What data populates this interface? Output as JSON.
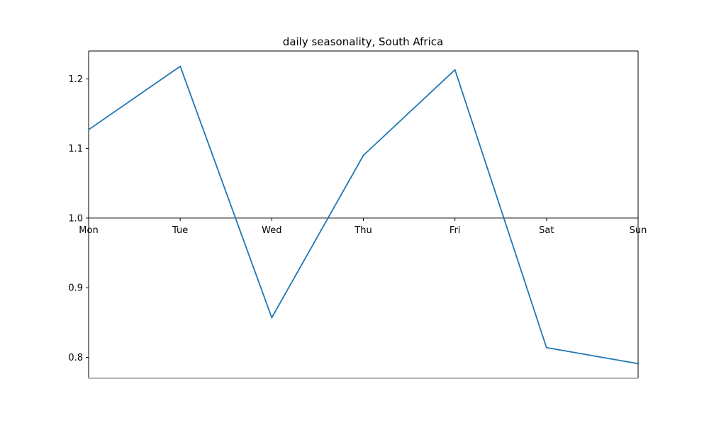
{
  "chart_data": {
    "type": "line",
    "title": "daily seasonality, South Africa",
    "xlabel": "",
    "ylabel": "",
    "categories": [
      "Mon",
      "Tue",
      "Wed",
      "Thu",
      "Fri",
      "Sat",
      "Sun"
    ],
    "series": [
      {
        "values": [
          1.127,
          1.218,
          0.857,
          1.09,
          1.213,
          0.814,
          0.791
        ],
        "color": "#1f77b4"
      }
    ],
    "ylim": [
      0.77,
      1.24
    ],
    "yticks": [
      "0.8",
      "0.9",
      "1.0",
      "1.1",
      "1.2"
    ],
    "x_axis_at_y": 1.0,
    "grid": false,
    "legend": "none"
  }
}
